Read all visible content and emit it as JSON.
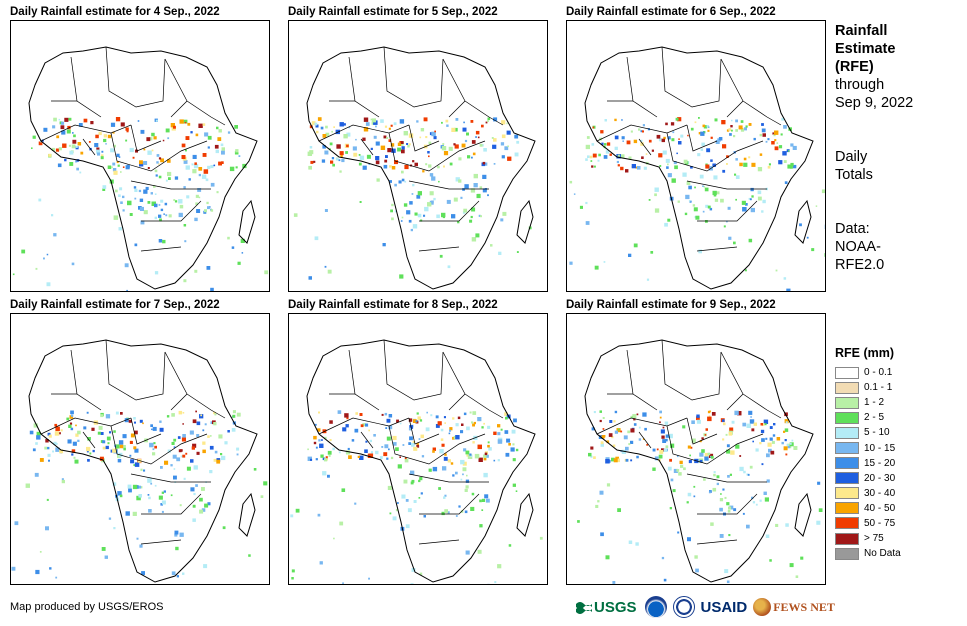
{
  "panels": [
    {
      "title": "Daily Rainfall estimate for 4 Sep., 2022"
    },
    {
      "title": "Daily Rainfall estimate for 5 Sep., 2022"
    },
    {
      "title": "Daily Rainfall estimate for 6 Sep., 2022"
    },
    {
      "title": "Daily Rainfall estimate for 7 Sep., 2022"
    },
    {
      "title": "Daily Rainfall estimate for 8 Sep., 2022"
    },
    {
      "title": "Daily Rainfall estimate for 9 Sep., 2022"
    }
  ],
  "side": {
    "title_line1": "Rainfall",
    "title_line2": "Estimate",
    "title_line3": "(RFE)",
    "through": "through",
    "date": "Sep 9, 2022",
    "totals_line1": "Daily",
    "totals_line2": "Totals",
    "data_line1": "Data:",
    "data_line2": "NOAA-",
    "data_line3": "RFE2.0"
  },
  "legend": {
    "title": "RFE (mm)",
    "items": [
      {
        "label": "0 - 0.1",
        "color": "#ffffff"
      },
      {
        "label": "0.1 - 1",
        "color": "#f2dcb4"
      },
      {
        "label": "1 - 2",
        "color": "#b8f0a6"
      },
      {
        "label": "2 - 5",
        "color": "#5fe05a"
      },
      {
        "label": "5 - 10",
        "color": "#b4ecf6"
      },
      {
        "label": "10 - 15",
        "color": "#78b7f0"
      },
      {
        "label": "15 - 20",
        "color": "#3d8ee8"
      },
      {
        "label": "20 - 30",
        "color": "#1f5fe0"
      },
      {
        "label": "30 - 40",
        "color": "#fde98c"
      },
      {
        "label": "40 - 50",
        "color": "#f9a400"
      },
      {
        "label": "50 - 75",
        "color": "#f03c00"
      },
      {
        "label": "> 75",
        "color": "#a01818"
      },
      {
        "label": "No Data",
        "color": "#999999"
      }
    ]
  },
  "credit": "Map produced by USGS/EROS",
  "logos": {
    "usgs": "USGS",
    "usaid": "USAID",
    "fews": "FEWS NET"
  }
}
